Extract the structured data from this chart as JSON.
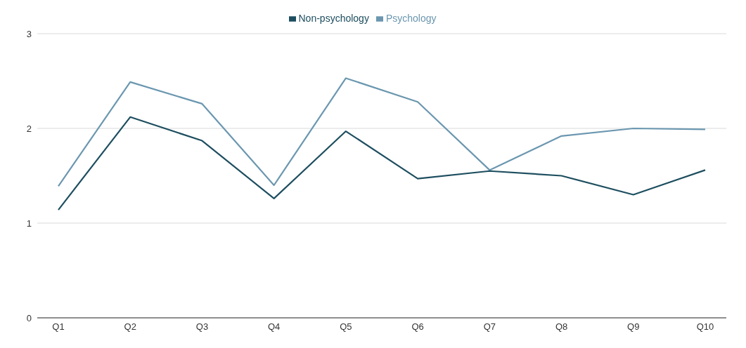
{
  "chart_data": {
    "type": "line",
    "categories": [
      "Q1",
      "Q2",
      "Q3",
      "Q4",
      "Q5",
      "Q6",
      "Q7",
      "Q8",
      "Q9",
      "Q10"
    ],
    "series": [
      {
        "name": "Psychology",
        "color": "#6b97b0",
        "values": [
          1.39,
          2.49,
          2.26,
          1.4,
          2.53,
          2.28,
          1.56,
          1.92,
          2.0,
          1.99
        ]
      },
      {
        "name": "Non-psychology",
        "color": "#1d4e5f",
        "values": [
          1.14,
          2.12,
          1.87,
          1.26,
          1.97,
          1.47,
          1.55,
          1.5,
          1.3,
          1.56
        ]
      }
    ],
    "ylim": [
      0,
      3
    ],
    "yticks": [
      0,
      1,
      2,
      3
    ],
    "grid": "y",
    "legend": "top",
    "marker": "none",
    "line_style": "solid"
  }
}
